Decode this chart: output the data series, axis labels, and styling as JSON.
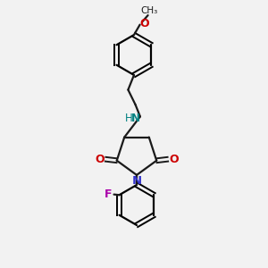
{
  "bg_color": "#f2f2f2",
  "bond_color": "#1a1a1a",
  "nitrogen_color": "#3333cc",
  "oxygen_color": "#cc0000",
  "fluorine_color": "#aa00aa",
  "nh_color": "#008080",
  "fig_size": [
    3.0,
    3.0
  ],
  "dpi": 100,
  "xlim": [
    0,
    10
  ],
  "ylim": [
    0,
    10
  ]
}
